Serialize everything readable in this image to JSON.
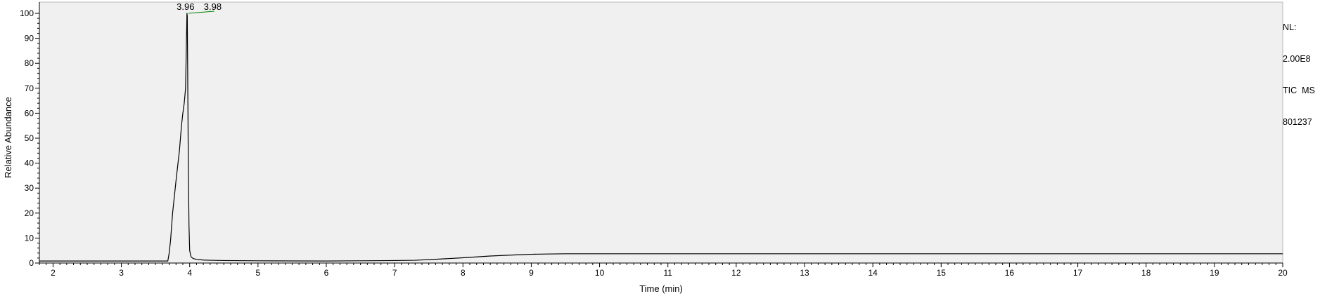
{
  "chart_data": {
    "type": "line",
    "xlabel": "Time (min)",
    "ylabel": "Relative Abundance",
    "xlim": [
      1.8,
      20
    ],
    "ylim": [
      0,
      100
    ],
    "x_ticks": [
      2,
      3,
      4,
      5,
      6,
      7,
      8,
      9,
      10,
      11,
      12,
      13,
      14,
      15,
      16,
      17,
      18,
      19,
      20
    ],
    "y_ticks": [
      0,
      10,
      20,
      30,
      40,
      50,
      60,
      70,
      80,
      90,
      100
    ],
    "grid": false,
    "colors": {
      "plot_background": "#f0f0f0",
      "trace": "#000000",
      "peak_marker": "#008000"
    },
    "series": [
      {
        "x": [
          1.8,
          2.0,
          2.5,
          3.0,
          3.5,
          3.68,
          3.7,
          3.72,
          3.75,
          3.8,
          3.85,
          3.88,
          3.9,
          3.92,
          3.94,
          3.95,
          3.96,
          3.965,
          3.97,
          3.98,
          3.99,
          4.0,
          4.02,
          4.05,
          4.1,
          4.2,
          4.3,
          4.5,
          5.0,
          5.5,
          6.0,
          6.5,
          7.0,
          7.3,
          7.6,
          8.0,
          8.4,
          8.8,
          9.0,
          9.2,
          9.5,
          10.0,
          11.0,
          12.0,
          13.0,
          14.0,
          15.0,
          16.0,
          17.0,
          18.0,
          19.0,
          20.0
        ],
        "y": [
          0.8,
          0.8,
          0.8,
          0.8,
          0.8,
          0.8,
          4,
          9,
          20,
          33,
          45,
          55,
          60,
          64,
          70,
          85,
          100,
          99,
          80,
          40,
          15,
          5,
          2.5,
          1.8,
          1.5,
          1.2,
          1.1,
          1.0,
          0.9,
          0.85,
          0.8,
          0.9,
          1.0,
          1.1,
          1.5,
          2.1,
          2.8,
          3.3,
          3.5,
          3.6,
          3.7,
          3.7,
          3.7,
          3.7,
          3.7,
          3.7,
          3.7,
          3.7,
          3.7,
          3.7,
          3.7,
          3.7
        ]
      }
    ],
    "annotations": [
      {
        "text": "3.96",
        "x": 3.96,
        "y": 100
      },
      {
        "text": "3.98",
        "x": 3.98,
        "y": 100
      }
    ]
  },
  "info": {
    "nl_label": "NL:",
    "nl_value": "2.00E8",
    "trace_type": "TIC  MS",
    "file_id": "801237"
  }
}
